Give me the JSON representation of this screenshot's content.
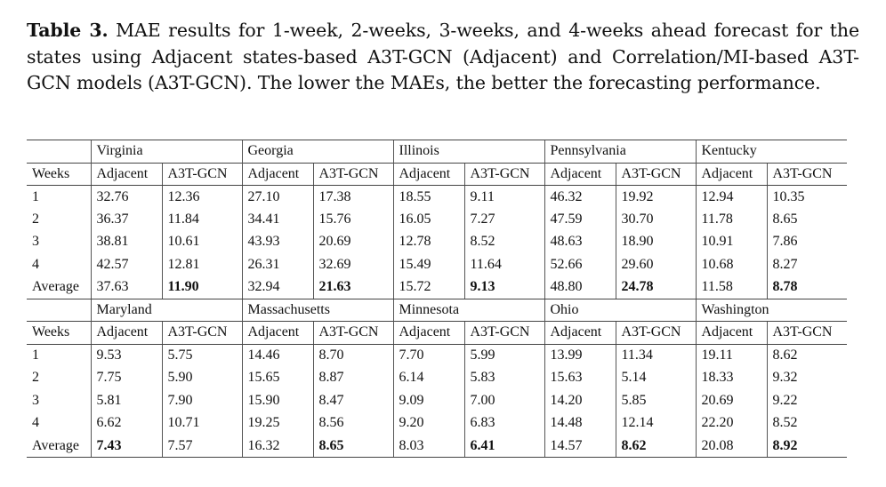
{
  "caption": {
    "label": "Table 3.",
    "text": " MAE results for 1-week, 2-weeks, 3-weeks, and 4-weeks ahead forecast for the states using Adjacent states-based A3T-GCN (Adjacent) and Correlation/MI-based A3T-GCN models (A3T-GCN). The lower the MAEs, the better the forecasting performance."
  },
  "table": {
    "weeks_header": "Weeks",
    "adjacent_header": "Adjacent",
    "a3t_header": "A3T-GCN",
    "blocks": [
      {
        "states": [
          "Virginia",
          "Georgia",
          "Illinois",
          "Pennsylvania",
          "Kentucky"
        ],
        "rows": [
          [
            "1",
            "32.76",
            "12.36",
            "27.10",
            "17.38",
            "18.55",
            "9.11",
            "46.32",
            "19.92",
            "12.94",
            "10.35"
          ],
          [
            "2",
            "36.37",
            "11.84",
            "34.41",
            "15.76",
            "16.05",
            "7.27",
            "47.59",
            "30.70",
            "11.78",
            "8.65"
          ],
          [
            "3",
            "38.81",
            "10.61",
            "43.93",
            "20.69",
            "12.78",
            "8.52",
            "48.63",
            "18.90",
            "10.91",
            "7.86"
          ],
          [
            "4",
            "42.57",
            "12.81",
            "26.31",
            "32.69",
            "15.49",
            "11.64",
            "52.66",
            "29.60",
            "10.68",
            "8.27"
          ],
          [
            "Average",
            "37.63",
            "11.90",
            "32.94",
            "21.63",
            "15.72",
            "9.13",
            "48.80",
            "24.78",
            "11.58",
            "8.78"
          ]
        ],
        "bold_average_cols": [
          2,
          4,
          6,
          8,
          10
        ]
      },
      {
        "states": [
          "Maryland",
          "Massachusetts",
          "Minnesota",
          "Ohio",
          "Washington"
        ],
        "rows": [
          [
            "1",
            "9.53",
            "5.75",
            "14.46",
            "8.70",
            "7.70",
            "5.99",
            "13.99",
            "11.34",
            "19.11",
            "8.62"
          ],
          [
            "2",
            "7.75",
            "5.90",
            "15.65",
            "8.87",
            "6.14",
            "5.83",
            "15.63",
            "5.14",
            "18.33",
            "9.32"
          ],
          [
            "3",
            "5.81",
            "7.90",
            "15.90",
            "8.47",
            "9.09",
            "7.00",
            "14.20",
            "5.85",
            "20.69",
            "9.22"
          ],
          [
            "4",
            "6.62",
            "10.71",
            "19.25",
            "8.56",
            "9.20",
            "6.83",
            "14.48",
            "12.14",
            "22.20",
            "8.52"
          ],
          [
            "Average",
            "7.43",
            "7.57",
            "16.32",
            "8.65",
            "8.03",
            "6.41",
            "14.57",
            "8.62",
            "20.08",
            "8.92"
          ]
        ],
        "bold_average_cols": [
          1,
          4,
          6,
          8,
          10
        ]
      }
    ]
  }
}
